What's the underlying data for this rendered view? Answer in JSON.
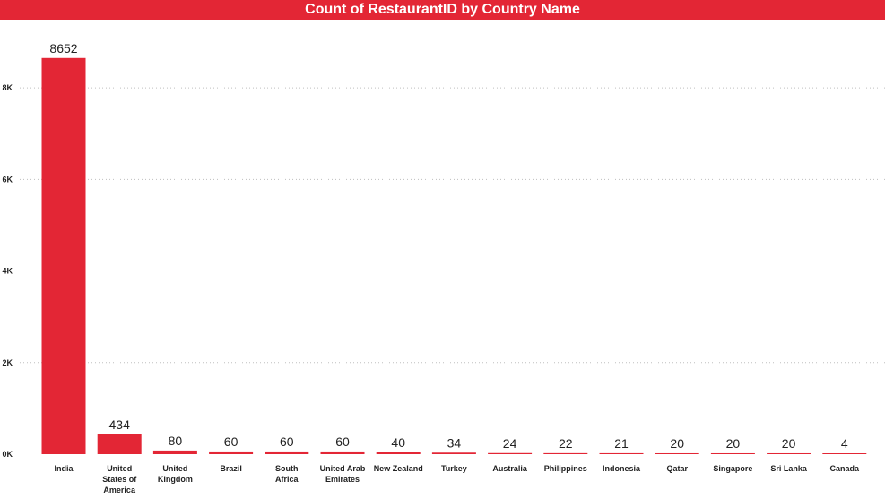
{
  "colors": {
    "accent": "#e32635"
  },
  "chart_data": {
    "type": "bar",
    "title": "Count of RestaurantID by Country Name",
    "xlabel": "",
    "ylabel": "",
    "categories": [
      "India",
      "United States of America",
      "United Kingdom",
      "Brazil",
      "South Africa",
      "United Arab Emirates",
      "New Zealand",
      "Turkey",
      "Australia",
      "Philippines",
      "Indonesia",
      "Qatar",
      "Singapore",
      "Sri Lanka",
      "Canada"
    ],
    "values": [
      8652,
      434,
      80,
      60,
      60,
      60,
      40,
      34,
      24,
      22,
      21,
      20,
      20,
      20,
      4
    ],
    "y_ticks": [
      0,
      2000,
      4000,
      6000,
      8000
    ],
    "y_tick_labels": [
      "0K",
      "2K",
      "4K",
      "6K",
      "8K"
    ],
    "ylim": [
      0,
      9000
    ],
    "grid": true,
    "legend": "none"
  }
}
